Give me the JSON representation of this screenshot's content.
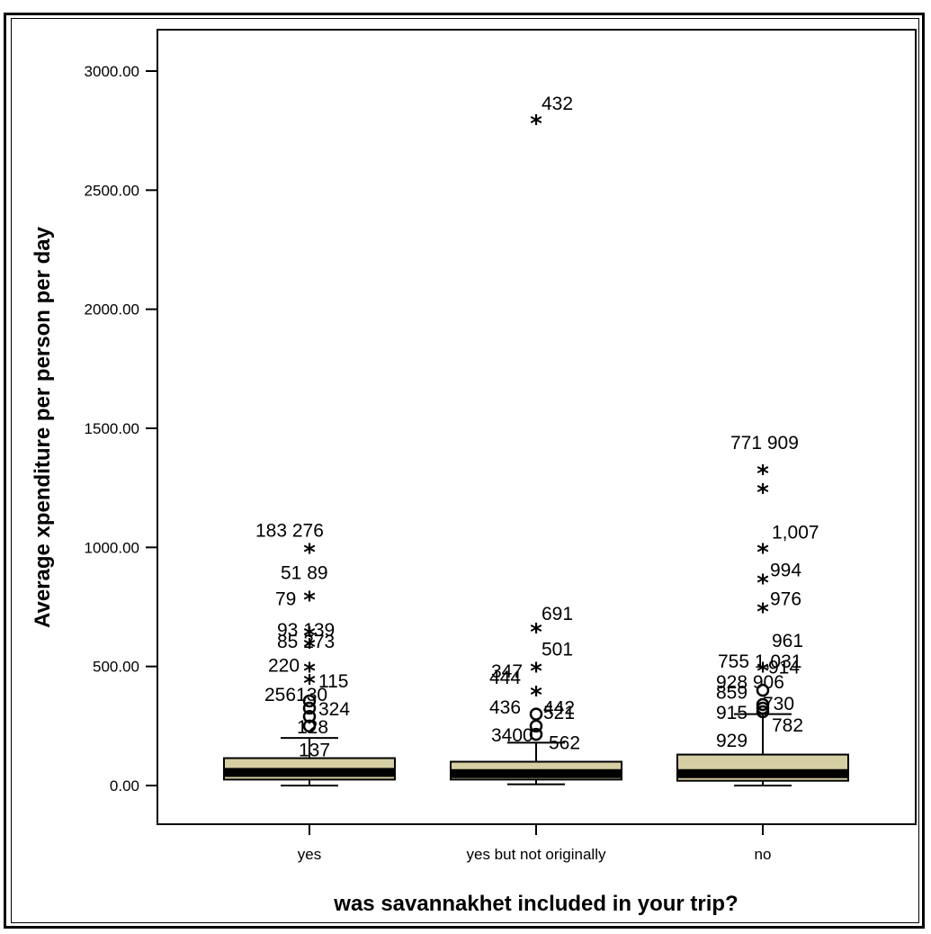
{
  "colors": {
    "box_fill": "#d6cfa4",
    "median": "#000000",
    "stroke": "#000000"
  },
  "chart_data": {
    "type": "box",
    "title": "",
    "xlabel": "was savannakhet included in your trip?",
    "ylabel": "Average xpenditure per person per day",
    "ylim": [
      -160,
      3180
    ],
    "yticks": [
      "0.00",
      "500.00",
      "1000.00",
      "1500.00",
      "2000.00",
      "2500.00",
      "3000.00"
    ],
    "categories": [
      "yes",
      "yes but not originally",
      "no"
    ],
    "groups": [
      {
        "name": "yes",
        "q1": 25,
        "median": 55,
        "q3": 115,
        "whisker_low": 0,
        "whisker_high": 200,
        "circles": [
          {
            "y": 250,
            "label": "128"
          },
          {
            "y": 290,
            "label": ""
          },
          {
            "y": 325,
            "label": "324"
          },
          {
            "y": 355,
            "label": "256130"
          }
        ],
        "stars": [
          {
            "y": 1000,
            "label": "183 276"
          },
          {
            "y": 800,
            "label": "51 89"
          },
          {
            "y": 650,
            "label": "93 139"
          },
          {
            "y": 600,
            "label": "85 273"
          },
          {
            "y": 500,
            "label": "220"
          },
          {
            "y": 450,
            "label": "115"
          }
        ],
        "extra_labels": [
          {
            "y": 160,
            "label": "137"
          },
          {
            "y": 750,
            "label": "79"
          }
        ]
      },
      {
        "name": "yes but not originally",
        "q1": 25,
        "median": 50,
        "q3": 100,
        "whisker_low": 5,
        "whisker_high": 180,
        "circles": [
          {
            "y": 215,
            "label": "3400"
          },
          {
            "y": 250,
            "label": "436"
          },
          {
            "y": 300,
            "label": "442"
          }
        ],
        "stars": [
          {
            "y": 2800,
            "label": "432"
          },
          {
            "y": 665,
            "label": "691"
          },
          {
            "y": 500,
            "label": "501"
          },
          {
            "y": 400,
            "label": "347"
          }
        ],
        "extra_labels": [
          {
            "y": 160,
            "label": "562"
          },
          {
            "y": 450,
            "label": "444"
          },
          {
            "y": 280,
            "label": "521"
          }
        ]
      },
      {
        "name": "no",
        "q1": 20,
        "median": 50,
        "q3": 130,
        "whisker_low": 0,
        "whisker_high": 300,
        "circles": [
          {
            "y": 310,
            "label": "915"
          },
          {
            "y": 325,
            "label": ""
          },
          {
            "y": 340,
            "label": "730"
          },
          {
            "y": 400,
            "label": "928 906"
          }
        ],
        "stars": [
          {
            "y": 1330,
            "label": "771 909"
          },
          {
            "y": 1250,
            "label": ""
          },
          {
            "y": 1000,
            "label": "1,007"
          },
          {
            "y": 870,
            "label": "994"
          },
          {
            "y": 750,
            "label": "976"
          },
          {
            "y": 500,
            "label": "914"
          }
        ],
        "extra_labels": [
          {
            "y": 230,
            "label": "929"
          },
          {
            "y": 250,
            "label": "782"
          },
          {
            "y": 620,
            "label": "961"
          },
          {
            "y": 540,
            "label": "755 1,031"
          },
          {
            "y": 380,
            "label": "859"
          }
        ]
      }
    ]
  }
}
